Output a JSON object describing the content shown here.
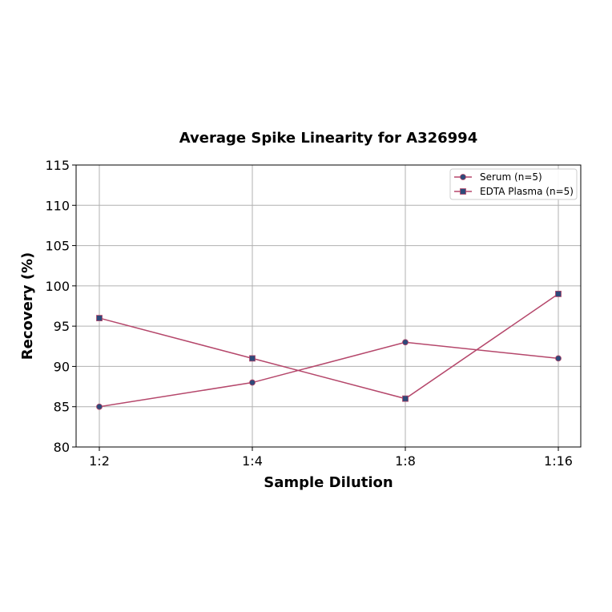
{
  "chart_data": {
    "type": "line",
    "title": "Average Spike Linearity for A326994",
    "xlabel": "Sample Dilution",
    "ylabel": "Recovery (%)",
    "categories": [
      "1:2",
      "1:4",
      "1:8",
      "1:16"
    ],
    "ylim": [
      80,
      115
    ],
    "yticks": [
      80,
      85,
      90,
      95,
      100,
      105,
      110,
      115
    ],
    "grid": true,
    "legend_position": "top-right",
    "series": [
      {
        "name": "Serum (n=5)",
        "values": [
          85,
          88,
          93,
          91
        ],
        "marker": "circle",
        "line_color": "#b5476b",
        "marker_color": "#2e4a7a"
      },
      {
        "name": "EDTA Plasma (n=5)",
        "values": [
          96,
          91,
          86,
          99
        ],
        "marker": "square",
        "line_color": "#b5476b",
        "marker_color": "#2e4a7a"
      }
    ]
  }
}
